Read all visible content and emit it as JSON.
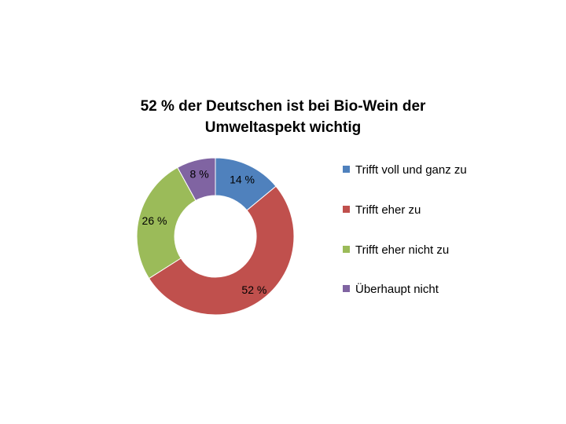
{
  "chart_data": {
    "type": "pie",
    "title": "52 % der Deutschen ist bei Bio-Wein der\nUmweltaspekt wichtig",
    "categories": [
      "Trifft voll und ganz zu",
      "Trifft eher zu",
      "Trifft eher nicht zu",
      "Überhaupt nicht"
    ],
    "values": [
      14,
      52,
      26,
      8
    ],
    "data_labels": [
      "14 %",
      "52 %",
      "26 %",
      "8 %"
    ],
    "colors": [
      "#4f81bd",
      "#c0504d",
      "#9bbb59",
      "#8064a2"
    ],
    "donut": true,
    "legend_position": "right"
  }
}
